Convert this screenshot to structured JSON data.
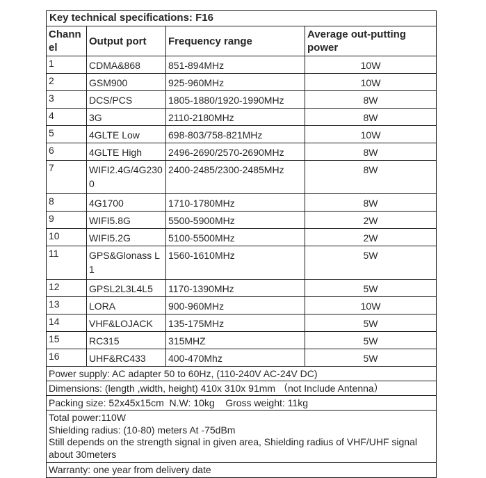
{
  "title": "Key technical specifications: F16",
  "table": {
    "headers": [
      "Channel",
      "Output port",
      "Frequency range",
      "Average out-putting power"
    ],
    "rows": [
      [
        "1",
        "CDMA&868",
        "851-894MHz",
        "10W"
      ],
      [
        "2",
        "GSM900",
        "925-960MHz",
        "10W"
      ],
      [
        "3",
        "DCS/PCS",
        "1805-1880/1920-1990MHz",
        "8W"
      ],
      [
        "4",
        "3G",
        "2110-2180MHz",
        "8W"
      ],
      [
        "5",
        "4GLTE Low",
        "698-803/758-821MHz",
        "10W"
      ],
      [
        "6",
        "4GLTE High",
        "2496-2690/2570-2690MHz",
        "8W"
      ],
      [
        "7",
        "WIFI2.4G/4G2300",
        "2400-2485/2300-2485MHz",
        "8W"
      ],
      [
        "8",
        "4G1700",
        "1710-1780MHz",
        "8W"
      ],
      [
        "9",
        "WIFI5.8G",
        "5500-5900MHz",
        "2W"
      ],
      [
        "10",
        "WIFI5.2G",
        "5100-5500MHz",
        "2W"
      ],
      [
        "11",
        "GPS&Glonass L1",
        "1560-1610MHz",
        "5W"
      ],
      [
        "12",
        "GPSL2L3L4L5",
        "1170-1390MHz",
        "5W"
      ],
      [
        "13",
        "LORA",
        "900-960MHz",
        "10W"
      ],
      [
        "14",
        "VHF&LOJACK",
        "135-175MHz",
        "5W"
      ],
      [
        "15",
        "RC315",
        "315MHZ",
        "5W"
      ],
      [
        "16",
        "UHF&RC433",
        "400-470Mhz",
        "5W"
      ]
    ],
    "tall_rows": [
      6,
      10
    ]
  },
  "footer": {
    "power_supply": "Power supply: AC adapter 50 to 60Hz, (110-240V AC-24V DC)",
    "dimensions": "Dimensions: (length ,width, height) 410x 310x 91mm （not Include Antenna）",
    "packing": "Packing size: 52x45x15cm  N.W: 10kg    Gross weight: 11kg",
    "details_lines": [
      "Total power:110W",
      "Shielding radius: (10-80) meters At -75dBm",
      "Still depends on the strength signal in given area, Shielding radius of VHF/UHF signal about 30meters"
    ],
    "warranty": "Warranty: one year from delivery date"
  },
  "colors": {
    "background": "#ffffff",
    "border": "#1a1a1a",
    "text": "#262626"
  }
}
